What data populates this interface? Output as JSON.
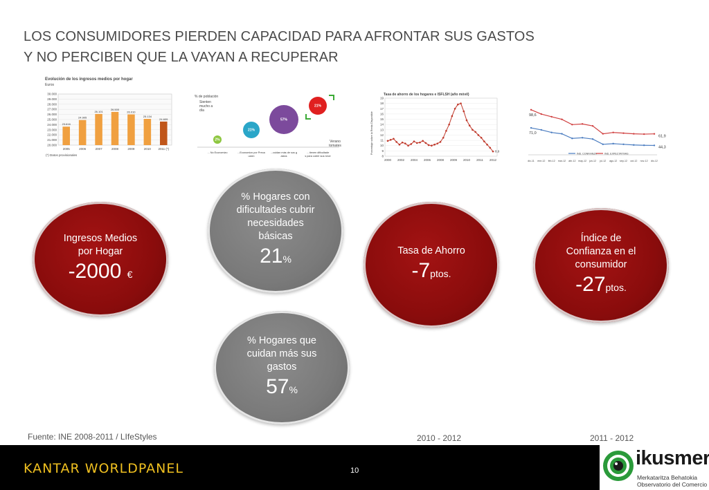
{
  "slide": {
    "title_line1": "LOS CONSUMIDORES PIERDEN CAPACIDAD PARA AFRONTAR SUS GASTOS",
    "title_line2": "Y NO PERCIBEN QUE LA VAYAN A RECUPERAR",
    "source": "Fuente: INE 2008-2011 / LIfeStyles",
    "period_savings": "2010 - 2012",
    "period_confidence": "2011 - 2012",
    "page_number": "10"
  },
  "thumb_income": {
    "title": "Evolución de los ingresos medios por hogar",
    "subtitle": "Euros",
    "footnote": "(*) Datos provisionales",
    "chart_data": {
      "type": "bar",
      "categories": [
        "2005",
        "2006",
        "2007",
        "2008",
        "2009",
        "2010",
        "2011 (*)"
      ],
      "values": [
        23.616,
        24.905,
        26.101,
        26.5,
        26.01,
        25.134,
        24.609
      ],
      "ylim": [
        20.0,
        30.0
      ],
      "yticks": [
        "30.000",
        "29.000",
        "28.000",
        "27.000",
        "26.000",
        "25.000",
        "24.000",
        "23.000",
        "22.000",
        "21.000",
        "20.000"
      ],
      "labels": [
        "23.616",
        "24.905",
        "26.101",
        "26.500",
        "26.010",
        "25.134",
        "24.609"
      ],
      "colors": [
        "#f0a040",
        "#f0a040",
        "#f0a040",
        "#f0a040",
        "#f0a040",
        "#f0a040",
        "#c0561a"
      ]
    }
  },
  "thumb_bubbles": {
    "header": "% de población",
    "header2": "Sienten mucho a día",
    "legend": "Verano tomates",
    "bubbles": [
      "2%",
      "21%",
      "57%",
      "21%"
    ],
    "axis_labels": [
      "... No Economizo",
      "...Economizo por Precaución",
      "...cuidan más de sus gastos",
      "... tienen dificultades para cubrir sus necesidades esenciales"
    ]
  },
  "thumb_savings": {
    "title": "Tasa de ahorro de los hogares e ISFLSH (año móvil)",
    "ylabel": "Porcentaje sobre la Renta Disponible",
    "end_label": "8,9",
    "chart_data": {
      "type": "line",
      "x": [
        "2000",
        "",
        "",
        "",
        "",
        "",
        "",
        "",
        "2002",
        "",
        "",
        "",
        "2004",
        "",
        "",
        "",
        "2006",
        "",
        "",
        "",
        "2008",
        "",
        "",
        "",
        "2009",
        "",
        "",
        "",
        "2010",
        "",
        "",
        "",
        "2011",
        "",
        "",
        "",
        "2012"
      ],
      "values": [
        10.9,
        11.1,
        11.3,
        10.7,
        10.2,
        10.6,
        10.4,
        10.0,
        10.3,
        10.8,
        10.5,
        10.6,
        10.9,
        10.5,
        10.1,
        10.0,
        10.2,
        10.4,
        10.7,
        11.5,
        12.8,
        14.0,
        15.6,
        17.0,
        17.8,
        18.0,
        16.5,
        14.8,
        13.8,
        13.0,
        12.6,
        12.0,
        11.5,
        10.8,
        10.2,
        9.6,
        8.9
      ],
      "ylim": [
        8,
        19
      ],
      "yticks": [
        "19",
        "18",
        "17",
        "16",
        "15",
        "14",
        "13",
        "12",
        "11",
        "10",
        "9",
        "8"
      ],
      "xticks": [
        "2000",
        "2002",
        "2004",
        "2006",
        "2008",
        "2009",
        "2010",
        "2011",
        "2012"
      ],
      "color": "#c0392b"
    }
  },
  "thumb_confidence": {
    "start_labels": [
      "98,6",
      "71,0"
    ],
    "end_labels": [
      "61,9",
      "44,3"
    ],
    "legend": [
      "IND. CONFIANZA",
      "IND. EXPECTATIVAS"
    ],
    "chart_data": {
      "type": "line",
      "x": [
        "dic-11",
        "ene-12",
        "feb-12",
        "mar-12",
        "abr-12",
        "may-12",
        "jun-12",
        "jul-12",
        "ago-12",
        "sep-12",
        "oct-12",
        "nov-12",
        "dic-12"
      ],
      "series": [
        {
          "name": "IND. EXPECTATIVAS",
          "values": [
            98.6,
            92,
            88,
            84,
            76,
            77,
            74,
            62,
            64,
            63,
            62,
            61.5,
            61.9
          ],
          "color": "#d04040"
        },
        {
          "name": "IND. CONFIANZA",
          "values": [
            71.0,
            68,
            64,
            62,
            55,
            56,
            54,
            46,
            47,
            46,
            45,
            44.5,
            44.3
          ],
          "color": "#4a7cc0"
        }
      ],
      "ylim": [
        30,
        110
      ]
    }
  },
  "kpis": [
    {
      "label": "Ingresos Medios por Hogar",
      "value": "-2000",
      "unit": "€"
    },
    {
      "label": "% Hogares con dificultades cubrir necesidades básicas",
      "value": "21",
      "unit": "%"
    },
    {
      "label": "% Hogares  que cuidan más sus gastos",
      "value": "57",
      "unit": "%"
    },
    {
      "label": "Tasa de Ahorro",
      "value": "-7",
      "unit": "ptos."
    },
    {
      "label": "Índice de Confianza en el consumidor",
      "value": "-27",
      "unit": "ptos."
    }
  ],
  "kpi_lines": {
    "income": [
      "Ingresos Medios",
      "por Hogar"
    ],
    "difficulties": [
      "% Hogares con",
      "dificultades cubrir",
      "necesidades",
      "básicas"
    ],
    "care": [
      "% Hogares  que",
      "cuidan más sus",
      "gastos"
    ],
    "savings": [
      "Tasa de Ahorro"
    ],
    "confidence": [
      "Índice de",
      "Confianza en el",
      "consumidor"
    ]
  },
  "footer": {
    "brand": "KANTAR WORLDPANEL",
    "logo_name": "ikusmer",
    "logo_sub1": "Merkataritza Behatokia",
    "logo_sub2": "Observatorio del Comercio"
  },
  "colors": {
    "kpi_red": "#8a0c0c",
    "kpi_grey": "#7a7a7a",
    "brand_yellow": "#f0c020",
    "ikusmer_green": "#2a9a3a"
  }
}
